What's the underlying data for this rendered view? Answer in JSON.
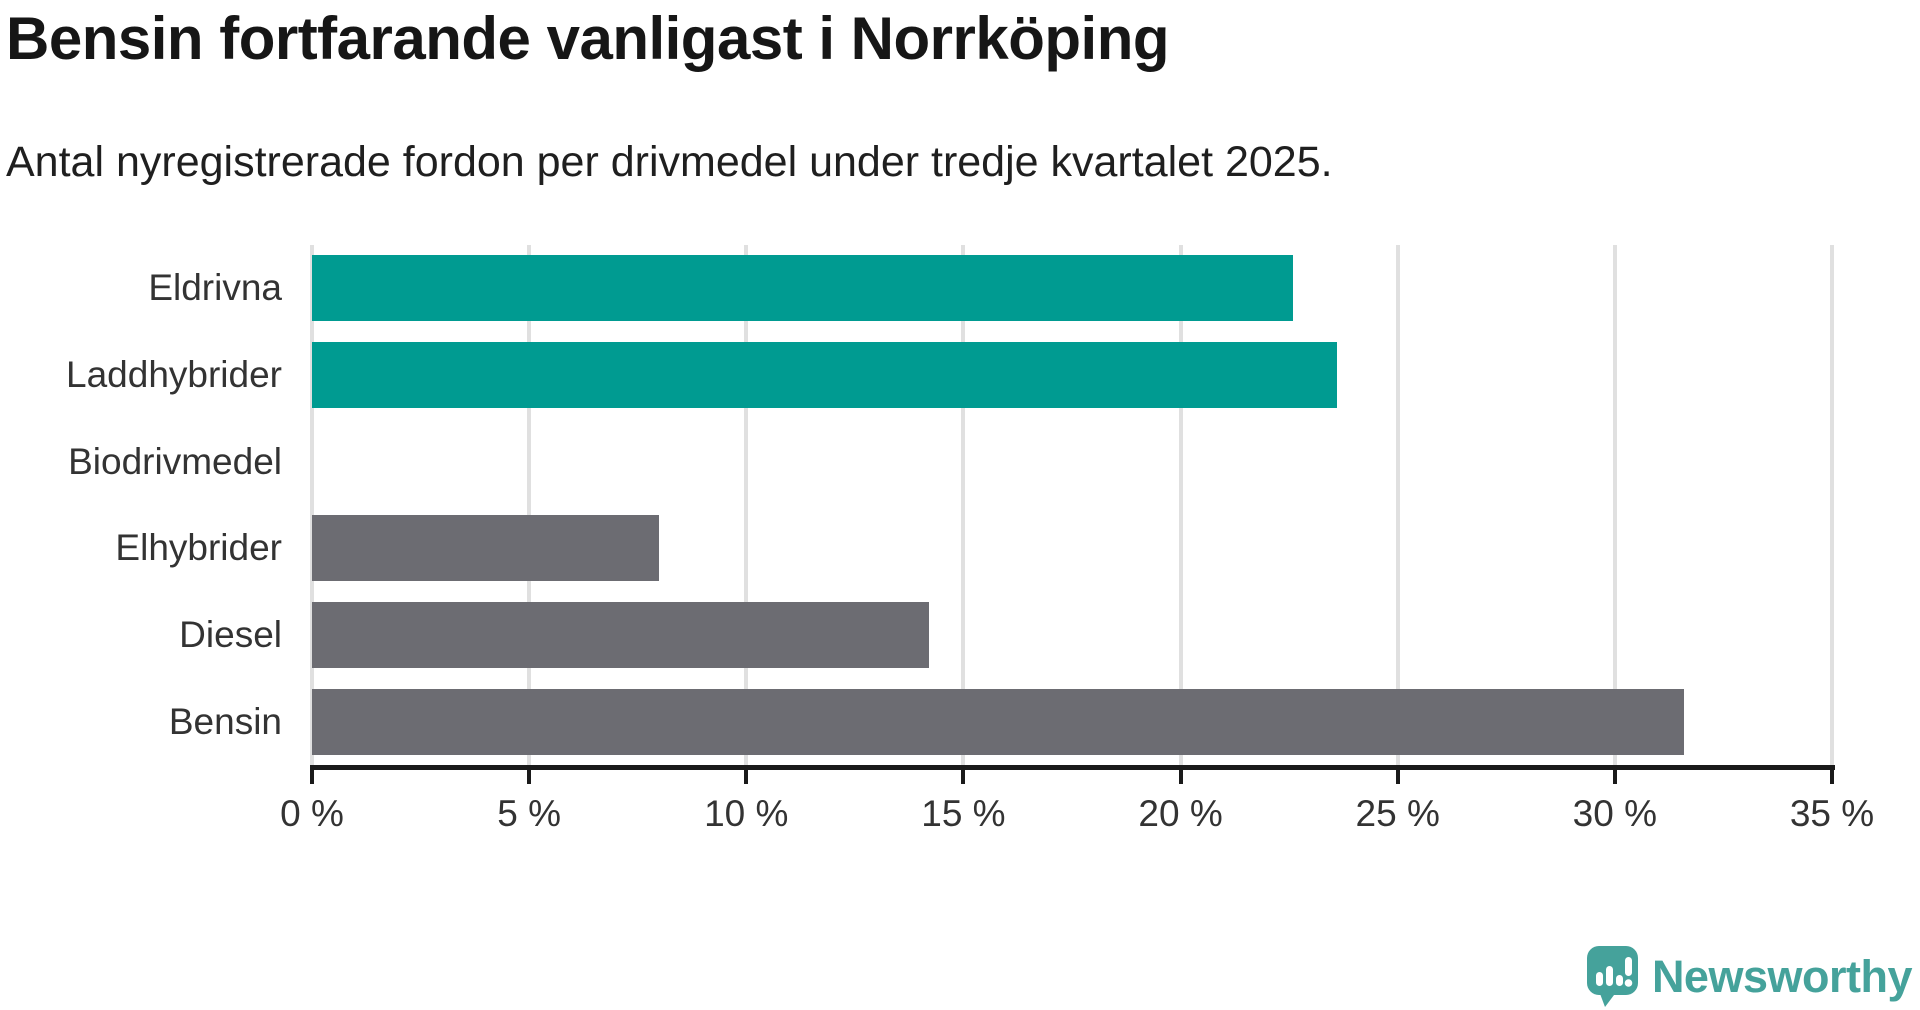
{
  "header": {
    "title": "Bensin fortfarande vanligast i Norrköping",
    "subtitle": "Antal nyregistrerade fordon per drivmedel under tredje kvartalet 2025."
  },
  "chart_data": {
    "type": "bar",
    "orientation": "horizontal",
    "title": "Bensin fortfarande vanligast i Norrköping",
    "subtitle": "Antal nyregistrerade fordon per drivmedel under tredje kvartalet 2025.",
    "categories": [
      "Eldrivna",
      "Laddhybrider",
      "Biodrivmedel",
      "Elhybrider",
      "Diesel",
      "Bensin"
    ],
    "values": [
      22.6,
      23.6,
      0,
      8.0,
      14.2,
      31.6
    ],
    "unit": "%",
    "bar_colors": [
      "#009b91",
      "#009b91",
      "#6c6c72",
      "#6c6c72",
      "#6c6c72",
      "#6c6c72"
    ],
    "xlim": [
      0,
      35
    ],
    "x_ticks": [
      0,
      5,
      10,
      15,
      20,
      25,
      30,
      35
    ],
    "x_tick_labels": [
      "0 %",
      "5 %",
      "10 %",
      "15 %",
      "20 %",
      "25 %",
      "30 %",
      "35 %"
    ],
    "grid": true,
    "legend": false
  },
  "colors": {
    "highlight_teal": "#009b91",
    "neutral_gray": "#6c6c72",
    "gridline": "#e0e0e0",
    "axis": "#1a1a1a",
    "logo_teal": "#45a29b"
  },
  "branding": {
    "logo_text": "Newsworthy"
  }
}
